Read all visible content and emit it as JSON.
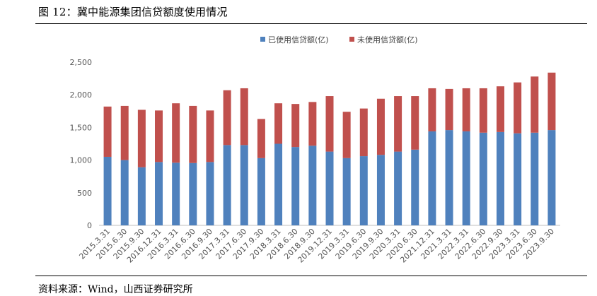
{
  "header": {
    "title": "图 12：冀中能源集团信贷额度使用情况"
  },
  "footer": {
    "source": "资料来源：Wind，山西证券研究所"
  },
  "colors": {
    "used": "#4F81BD",
    "unused": "#C0504D",
    "axis": "#BFBFBF"
  },
  "chart_data": {
    "type": "bar",
    "stacked": true,
    "title": "",
    "xlabel": "",
    "ylabel": "",
    "ylim": [
      0,
      2500
    ],
    "yticks": [
      0,
      500,
      1000,
      1500,
      2000,
      2500
    ],
    "ytick_labels": [
      "0",
      "500",
      "1,000",
      "1,500",
      "2,000",
      "2,500"
    ],
    "grid": false,
    "legend_position": "top-center",
    "categories": [
      "2015.3.31",
      "2015.6.30",
      "2015.9.30",
      "2016.12.31",
      "2016.3.31",
      "2016.6.30",
      "2016.9.30",
      "2017.3.31",
      "2017.6.30",
      "2017.9.30",
      "2018.3.31",
      "2018.6.30",
      "2018.9.30",
      "2019.12.31",
      "2019.3.31",
      "2019.6.30",
      "2019.9.30",
      "2020.3.31",
      "2020.6.30",
      "2021.12.31",
      "2021.3.31",
      "2022.3.31",
      "2022.6.30",
      "2022.9.30",
      "2023.3.31",
      "2023.6.30",
      "2023.9.30"
    ],
    "series": [
      {
        "name": "已使用信贷额(亿)",
        "color": "#4F81BD",
        "values": [
          1050,
          1000,
          890,
          970,
          960,
          955,
          970,
          1230,
          1230,
          1030,
          1250,
          1200,
          1220,
          1130,
          1030,
          1060,
          1080,
          1130,
          1160,
          1440,
          1460,
          1440,
          1420,
          1430,
          1410,
          1420,
          1460
        ]
      },
      {
        "name": "未使用信贷额(亿)",
        "color": "#C0504D",
        "values": [
          770,
          830,
          880,
          790,
          910,
          875,
          790,
          840,
          870,
          600,
          620,
          660,
          670,
          850,
          710,
          730,
          860,
          850,
          820,
          660,
          630,
          660,
          680,
          700,
          780,
          860,
          880
        ]
      }
    ]
  }
}
